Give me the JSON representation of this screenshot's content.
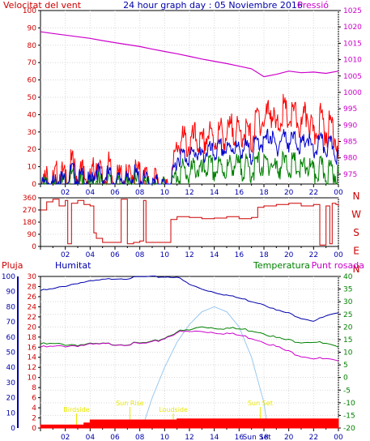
{
  "header": {
    "left": "Velocitat del vent",
    "center": "24 hour graph day : 05 Noviembre 2016",
    "right": "Pressió"
  },
  "bottom_labels": {
    "left": "Pluja",
    "humidity": "Humitat",
    "temperature": "Temperatura",
    "dewpoint": "Punt rosada"
  },
  "direction_labels": [
    "N",
    "W",
    "S",
    "E",
    "N"
  ],
  "colors": {
    "wind_gust": "#ff0000",
    "wind_avg": "#0000cc",
    "wind_low": "#008000",
    "pressure": "#cc00cc",
    "direction": "#cc0000",
    "humidity": "#0000aa",
    "temperature": "#008000",
    "dewpoint": "#cc00cc",
    "rain": "#ff0000",
    "sun": "#9ac8f0",
    "event": "#e8e800",
    "left_axis": "#cc0000",
    "right_axis": "#cc00cc",
    "humidity_axis": "#0000aa",
    "temp_axis": "#008000",
    "rain_axis": "#cc0000"
  },
  "chart_data": [
    {
      "type": "line",
      "name": "wind-pressure",
      "x_ticks": [
        "02",
        "04",
        "06",
        "08",
        "10",
        "12",
        "14",
        "16",
        "18",
        "20",
        "22",
        "00"
      ],
      "left_axis": {
        "label": "Velocitat del vent",
        "ticks": [
          0,
          10,
          20,
          30,
          40,
          50,
          60,
          70,
          80,
          90,
          100
        ],
        "ylim": [
          0,
          100
        ]
      },
      "right_axis": {
        "label": "Pressió",
        "ticks": [
          975,
          980,
          985,
          990,
          995,
          1000,
          1005,
          1010,
          1015,
          1020,
          1025
        ],
        "ylim": [
          972,
          1025
        ]
      },
      "series": [
        {
          "kind": "gust",
          "hours": [
            0.0,
            0.5,
            1.0,
            1.5,
            2.0,
            2.5,
            3.0,
            3.5,
            4.0,
            4.5,
            5.0,
            5.5,
            6.0,
            6.5,
            7.0,
            7.5,
            8.0,
            8.5,
            9.0,
            9.5,
            10.0,
            10.5,
            11.0,
            11.5,
            12.0,
            12.5,
            13.0,
            13.5,
            14.0,
            14.5,
            15.0,
            15.5,
            16.0,
            16.5,
            17.0,
            17.5,
            18.0,
            18.5,
            19.0,
            19.5,
            20.0,
            20.5,
            21.0,
            21.5,
            22.0,
            22.5,
            23.0,
            23.5,
            24.0
          ],
          "values": [
            2,
            8,
            5,
            12,
            6,
            16,
            9,
            11,
            5,
            18,
            7,
            14,
            4,
            10,
            6,
            13,
            9,
            8,
            3,
            6,
            2,
            4,
            28,
            30,
            27,
            32,
            26,
            34,
            30,
            35,
            32,
            38,
            33,
            36,
            30,
            44,
            40,
            50,
            35,
            48,
            42,
            45,
            36,
            47,
            30,
            44,
            35,
            40,
            26
          ]
        },
        {
          "kind": "average",
          "hours": [
            0.0,
            0.5,
            1.0,
            1.5,
            2.0,
            2.5,
            3.0,
            3.5,
            4.0,
            4.5,
            5.0,
            5.5,
            6.0,
            6.5,
            7.0,
            7.5,
            8.0,
            8.5,
            9.0,
            9.5,
            10.0,
            10.5,
            11.0,
            11.5,
            12.0,
            12.5,
            13.0,
            13.5,
            14.0,
            14.5,
            15.0,
            15.5,
            16.0,
            16.5,
            17.0,
            17.5,
            18.0,
            18.5,
            19.0,
            19.5,
            20.0,
            20.5,
            21.0,
            21.5,
            22.0,
            22.5,
            23.0,
            23.5,
            24.0
          ],
          "values": [
            1,
            5,
            3,
            8,
            4,
            11,
            6,
            7,
            3,
            12,
            5,
            9,
            3,
            7,
            4,
            9,
            6,
            5,
            2,
            4,
            1,
            3,
            18,
            20,
            18,
            22,
            18,
            23,
            20,
            24,
            22,
            25,
            22,
            24,
            20,
            28,
            26,
            32,
            23,
            31,
            27,
            29,
            24,
            30,
            20,
            28,
            23,
            26,
            17
          ]
        },
        {
          "kind": "low",
          "hours": [
            0.0,
            0.5,
            1.0,
            1.5,
            2.0,
            2.5,
            3.0,
            3.5,
            4.0,
            4.5,
            5.0,
            5.5,
            6.0,
            6.5,
            7.0,
            7.5,
            8.0,
            8.5,
            9.0,
            9.5,
            10.0,
            10.5,
            11.0,
            11.5,
            12.0,
            12.5,
            13.0,
            13.5,
            14.0,
            14.5,
            15.0,
            15.5,
            16.0,
            16.5,
            17.0,
            17.5,
            18.0,
            18.5,
            19.0,
            19.5,
            20.0,
            20.5,
            21.0,
            21.5,
            22.0,
            22.5,
            23.0,
            23.5,
            24.0
          ],
          "values": [
            0,
            3,
            1,
            5,
            2,
            7,
            3,
            4,
            1,
            7,
            2,
            5,
            1,
            4,
            2,
            5,
            3,
            2,
            0,
            1,
            0,
            1,
            10,
            12,
            9,
            14,
            10,
            15,
            11,
            14,
            12,
            16,
            13,
            14,
            11,
            16,
            14,
            17,
            12,
            16,
            14,
            15,
            11,
            15,
            9,
            13,
            10,
            12,
            7
          ]
        },
        {
          "kind": "pressure",
          "hours": [
            0,
            1,
            2,
            3,
            4,
            5,
            6,
            7,
            8,
            9,
            10,
            11,
            12,
            13,
            14,
            15,
            16,
            17,
            18,
            19,
            20,
            21,
            22,
            23,
            24
          ],
          "values": [
            1018.5,
            1018.0,
            1017.5,
            1017.0,
            1016.5,
            1015.8,
            1015.2,
            1014.6,
            1014.0,
            1013.2,
            1012.5,
            1011.8,
            1011.0,
            1010.2,
            1009.5,
            1008.8,
            1008.0,
            1007.2,
            1004.8,
            1005.5,
            1006.5,
            1006.0,
            1006.2,
            1005.8,
            1006.5
          ]
        }
      ]
    },
    {
      "type": "line",
      "name": "wind-direction",
      "x_ticks": [
        "02",
        "04",
        "06",
        "08",
        "10",
        "12",
        "14",
        "16",
        "18",
        "20",
        "22",
        "00"
      ],
      "y_axis": {
        "ticks": [
          0,
          90,
          180,
          270,
          360
        ],
        "ylim": [
          0,
          360
        ]
      },
      "series": [
        {
          "kind": "direction",
          "hours": [
            0.0,
            0.5,
            1.0,
            1.5,
            2.0,
            2.2,
            2.5,
            3.0,
            3.5,
            4.0,
            4.3,
            4.5,
            5.0,
            5.5,
            6.0,
            6.5,
            7.0,
            7.5,
            8.0,
            8.3,
            8.5,
            9.0,
            9.5,
            10.0,
            10.5,
            11.0,
            12.0,
            13.0,
            14.0,
            15.0,
            16.0,
            17.0,
            17.5,
            18.0,
            19.0,
            20.0,
            21.0,
            22.0,
            22.5,
            23.0,
            23.3,
            23.5,
            23.8,
            24.0
          ],
          "values": [
            270,
            330,
            350,
            300,
            340,
            20,
            320,
            340,
            310,
            300,
            100,
            60,
            30,
            30,
            30,
            350,
            20,
            30,
            40,
            340,
            30,
            30,
            30,
            30,
            200,
            220,
            215,
            205,
            210,
            220,
            205,
            215,
            290,
            300,
            310,
            320,
            300,
            310,
            10,
            300,
            20,
            320,
            310,
            300
          ]
        }
      ]
    },
    {
      "type": "line",
      "name": "humidity-temp-rain",
      "x_ticks": [
        "02",
        "04",
        "06",
        "08",
        "10",
        "12",
        "14",
        "16",
        "18",
        "20",
        "22",
        "00"
      ],
      "humidity_axis": {
        "label": "Humitat",
        "ticks": [
          0,
          10,
          20,
          30,
          40,
          50,
          60,
          70,
          80,
          90,
          100
        ],
        "ylim": [
          0,
          100
        ]
      },
      "rain_axis": {
        "label": "Pluja",
        "ticks": [
          0,
          2,
          4,
          6,
          8,
          10,
          12,
          14,
          16,
          18,
          20,
          22,
          24,
          26,
          28,
          30
        ],
        "ylim": [
          0,
          30
        ]
      },
      "temp_axis": {
        "label": "Temperatura",
        "ticks": [
          -20,
          -15,
          -10,
          -5,
          0,
          5,
          10,
          15,
          20,
          25,
          30,
          35,
          40
        ],
        "ylim": [
          -20,
          40
        ]
      },
      "series": [
        {
          "kind": "humidity",
          "hours": [
            0,
            1,
            2,
            3,
            4,
            5,
            6,
            7,
            8,
            9,
            10,
            11,
            12,
            13,
            14,
            15,
            16,
            17,
            18,
            19,
            20,
            21,
            22,
            23,
            24
          ],
          "values": [
            91,
            92,
            94,
            96,
            97,
            98,
            99,
            99,
            100,
            100,
            100,
            100,
            95,
            92,
            90,
            88,
            86,
            84,
            82,
            78,
            76,
            73,
            71,
            74,
            76
          ]
        },
        {
          "kind": "temperature",
          "hours": [
            0,
            1,
            2,
            3,
            4,
            5,
            6,
            7,
            8,
            9,
            10,
            11,
            12,
            13,
            14,
            15,
            16,
            17,
            18,
            19,
            20,
            21,
            22,
            23,
            24
          ],
          "values": [
            13.5,
            13.5,
            13.4,
            13.3,
            13.4,
            13.5,
            13.6,
            13.6,
            13.8,
            14.2,
            16.0,
            18.5,
            19.0,
            20.5,
            20.0,
            19.8,
            19.5,
            19.0,
            18.0,
            16.0,
            15.0,
            14.5,
            14.5,
            13.5,
            12.0
          ]
        },
        {
          "kind": "dewpoint",
          "hours": [
            0,
            1,
            2,
            3,
            4,
            5,
            6,
            7,
            8,
            9,
            10,
            11,
            12,
            13,
            14,
            15,
            16,
            17,
            18,
            19,
            20,
            21,
            22,
            23,
            24
          ],
          "values": [
            12.3,
            12.4,
            12.8,
            13.0,
            13.2,
            13.4,
            13.5,
            13.5,
            13.6,
            14.0,
            15.8,
            18.2,
            18.4,
            18.6,
            18.2,
            17.8,
            17.0,
            16.0,
            14.5,
            12.5,
            10.5,
            9.0,
            8.0,
            7.5,
            6.5
          ]
        },
        {
          "kind": "rain",
          "hours": [
            0,
            3,
            3.5,
            4,
            10.5,
            11,
            24
          ],
          "values": [
            0.6,
            0.6,
            1.0,
            1.6,
            1.6,
            1.8,
            1.8
          ]
        },
        {
          "kind": "sun",
          "hours": [
            8.2,
            9,
            10,
            11,
            12,
            13,
            14,
            15,
            16,
            17,
            18,
            18.3
          ],
          "values": [
            0,
            6,
            12,
            17,
            20.5,
            23,
            24,
            23,
            20,
            14,
            5,
            0
          ]
        }
      ],
      "annotations": [
        {
          "text": "Birdside",
          "hour": 2.9
        },
        {
          "text": "Sun Rise",
          "hour": 7.2
        },
        {
          "text": "Loudside",
          "hour": 10.7
        },
        {
          "text": "Sun Set",
          "hour": 17.7
        }
      ],
      "bottom_marks": [
        "Sun",
        "Set"
      ]
    }
  ]
}
